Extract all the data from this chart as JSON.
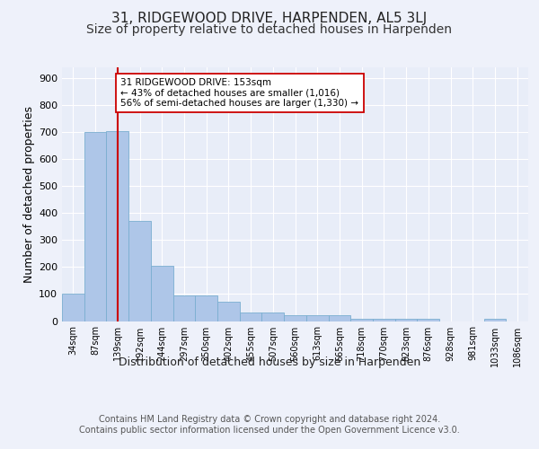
{
  "title": "31, RIDGEWOOD DRIVE, HARPENDEN, AL5 3LJ",
  "subtitle": "Size of property relative to detached houses in Harpenden",
  "xlabel": "Distribution of detached houses by size in Harpenden",
  "ylabel": "Number of detached properties",
  "categories": [
    "34sqm",
    "87sqm",
    "139sqm",
    "192sqm",
    "244sqm",
    "297sqm",
    "350sqm",
    "402sqm",
    "455sqm",
    "507sqm",
    "560sqm",
    "613sqm",
    "665sqm",
    "718sqm",
    "770sqm",
    "823sqm",
    "876sqm",
    "928sqm",
    "981sqm",
    "1033sqm",
    "1086sqm"
  ],
  "values": [
    100,
    700,
    705,
    370,
    205,
    95,
    95,
    70,
    30,
    30,
    20,
    20,
    20,
    8,
    8,
    8,
    8,
    0,
    0,
    8,
    0
  ],
  "bar_color": "#aec6e8",
  "bar_edge_color": "#7aaed0",
  "vline_x": 2,
  "vline_color": "#cc0000",
  "annotation_text": "31 RIDGEWOOD DRIVE: 153sqm\n← 43% of detached houses are smaller (1,016)\n56% of semi-detached houses are larger (1,330) →",
  "annotation_box_color": "#ffffff",
  "annotation_box_edge": "#cc0000",
  "ylim": [
    0,
    940
  ],
  "yticks": [
    0,
    100,
    200,
    300,
    400,
    500,
    600,
    700,
    800,
    900
  ],
  "footer": "Contains HM Land Registry data © Crown copyright and database right 2024.\nContains public sector information licensed under the Open Government Licence v3.0.",
  "bg_color": "#eef1fa",
  "plot_bg": "#e8edf8",
  "grid_color": "#ffffff",
  "title_fontsize": 11,
  "subtitle_fontsize": 10,
  "label_fontsize": 9,
  "tick_fontsize": 8,
  "footer_fontsize": 7
}
